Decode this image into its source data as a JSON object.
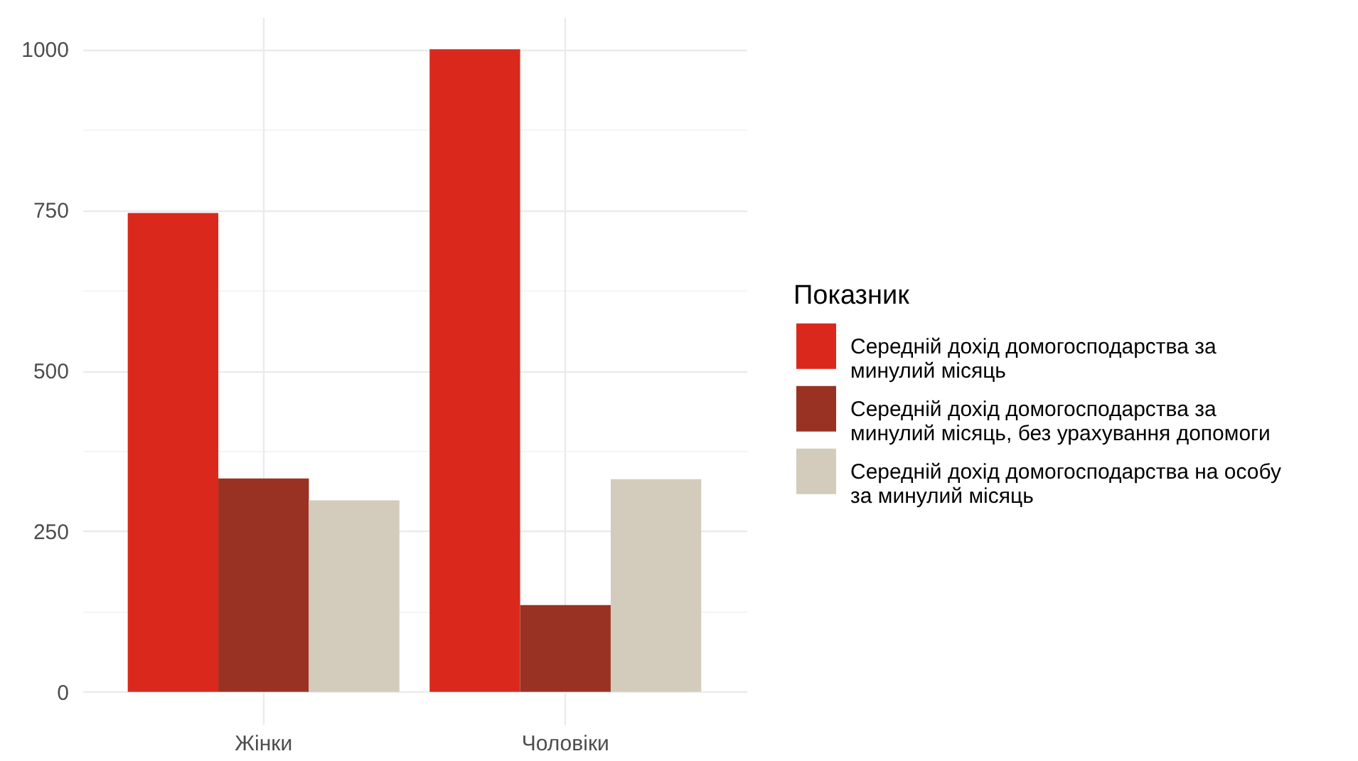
{
  "chart_data": {
    "type": "bar",
    "categories": [
      "Жінки",
      "Чоловіки"
    ],
    "series": [
      {
        "name": "Середній дохід домогосподарства за минулий місяць",
        "color": "#da291c",
        "values": [
          745,
          1000
        ]
      },
      {
        "name": "Середній дохід домогосподарства за минулий місяць, без урахування допомоги",
        "color": "#993223",
        "values": [
          332,
          135
        ]
      },
      {
        "name": "Середній дохід домогосподарства на особу за минулий місяць",
        "color": "#d3ccbd",
        "values": [
          298,
          331
        ]
      }
    ],
    "legend_title": "Показник",
    "ylim": [
      -50,
      1050
    ],
    "yticks": [
      0,
      {
        "value": 125,
        "label": null
      },
      250,
      {
        "value": 375,
        "label": null
      },
      500,
      {
        "value": 625,
        "label": null
      },
      750,
      {
        "value": 875,
        "label": null
      },
      1000
    ],
    "grid": true,
    "legend": "right"
  }
}
